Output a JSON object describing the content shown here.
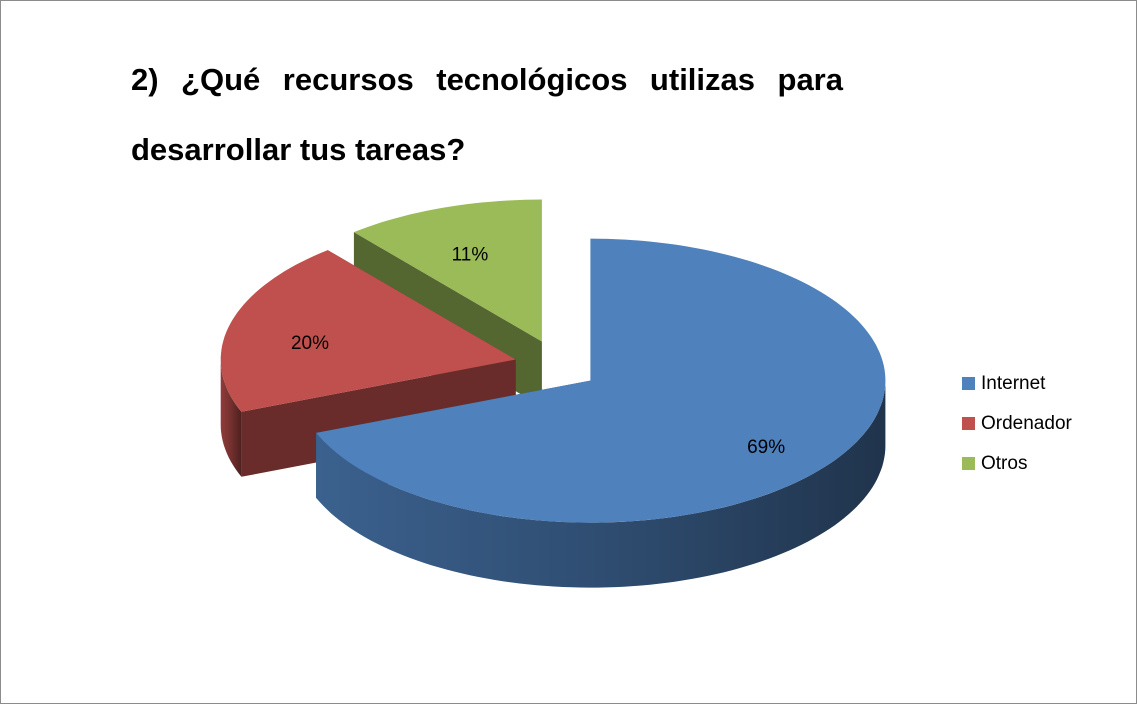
{
  "chart_data": {
    "type": "pie",
    "title": "2) ¿Qué recursos tecnológicos utilizas para desarrollar tus tareas?",
    "categories": [
      "Internet",
      "Ordenador",
      "Otros"
    ],
    "values": [
      69,
      20,
      11
    ],
    "value_labels": [
      "69%",
      "20%",
      "11%"
    ],
    "colors": [
      "#4f81bd",
      "#c0504d",
      "#9bbb59"
    ],
    "legend": "right"
  }
}
